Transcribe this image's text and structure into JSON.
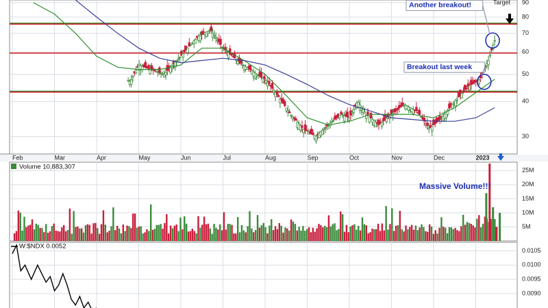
{
  "colors": {
    "grid": "#d9dde4",
    "up": "#3a8a3a",
    "down": "#c81e3c",
    "ma_short": "#2f8f2f",
    "ma_long": "#3b3f9a",
    "support": "#1f8a1f",
    "resistance": "#d21f2a",
    "annotation": "#1a2fb0",
    "indicator": "#000000"
  },
  "chart_data": [
    {
      "type": "candlestick",
      "title": "",
      "y_scale": "log",
      "ylim": [
        26,
        92
      ],
      "price_ticks": [
        30,
        40,
        50,
        60,
        70,
        80,
        90
      ],
      "x_month_labels": [
        "Feb",
        "Mar",
        "Apr",
        "May",
        "Jun",
        "Jul",
        "Aug",
        "Sep",
        "Oct",
        "Nov",
        "Dec",
        "2023"
      ],
      "target_label": "Target",
      "horizontal_lines": [
        {
          "value": 76,
          "color": "support"
        },
        {
          "value": 59.5,
          "color": "resistance"
        },
        {
          "value": 43.5,
          "color": "support"
        },
        {
          "value": 75.5,
          "color": "resistance"
        },
        {
          "value": 43.2,
          "color": "resistance"
        }
      ],
      "close_path": [
        {
          "x": 0.0,
          "y": 90
        },
        {
          "x": 0.5,
          "y": 84
        },
        {
          "x": 1.0,
          "y": 76
        },
        {
          "x": 1.2,
          "y": 62
        },
        {
          "x": 1.5,
          "y": 52
        },
        {
          "x": 1.8,
          "y": 50
        },
        {
          "x": 2.2,
          "y": 55
        },
        {
          "x": 2.5,
          "y": 50
        },
        {
          "x": 2.8,
          "y": 47
        },
        {
          "x": 3.0,
          "y": 54
        },
        {
          "x": 3.3,
          "y": 52
        },
        {
          "x": 3.6,
          "y": 50
        },
        {
          "x": 4.0,
          "y": 58
        },
        {
          "x": 4.4,
          "y": 68
        },
        {
          "x": 4.7,
          "y": 72
        },
        {
          "x": 5.0,
          "y": 62
        },
        {
          "x": 5.4,
          "y": 55
        },
        {
          "x": 5.8,
          "y": 50
        },
        {
          "x": 6.0,
          "y": 48
        },
        {
          "x": 6.3,
          "y": 42
        },
        {
          "x": 6.6,
          "y": 36
        },
        {
          "x": 6.9,
          "y": 32
        },
        {
          "x": 7.2,
          "y": 30
        },
        {
          "x": 7.5,
          "y": 33
        },
        {
          "x": 7.8,
          "y": 36
        },
        {
          "x": 8.0,
          "y": 35
        },
        {
          "x": 8.2,
          "y": 40
        },
        {
          "x": 8.4,
          "y": 36
        },
        {
          "x": 8.7,
          "y": 33
        },
        {
          "x": 9.0,
          "y": 36
        },
        {
          "x": 9.3,
          "y": 39
        },
        {
          "x": 9.6,
          "y": 37
        },
        {
          "x": 9.9,
          "y": 32
        },
        {
          "x": 10.2,
          "y": 35
        },
        {
          "x": 10.5,
          "y": 40
        },
        {
          "x": 10.8,
          "y": 45
        },
        {
          "x": 11.1,
          "y": 48
        },
        {
          "x": 11.3,
          "y": 56
        },
        {
          "x": 11.45,
          "y": 66
        }
      ],
      "ma_short_path": [
        {
          "x": 0.5,
          "y": 90
        },
        {
          "x": 1.0,
          "y": 82
        },
        {
          "x": 1.5,
          "y": 70
        },
        {
          "x": 2.0,
          "y": 58
        },
        {
          "x": 2.5,
          "y": 53
        },
        {
          "x": 3.0,
          "y": 52
        },
        {
          "x": 3.5,
          "y": 52
        },
        {
          "x": 4.0,
          "y": 54
        },
        {
          "x": 4.5,
          "y": 62
        },
        {
          "x": 5.0,
          "y": 62
        },
        {
          "x": 5.5,
          "y": 56
        },
        {
          "x": 6.0,
          "y": 50
        },
        {
          "x": 6.5,
          "y": 42
        },
        {
          "x": 7.0,
          "y": 35
        },
        {
          "x": 7.5,
          "y": 33
        },
        {
          "x": 8.0,
          "y": 34
        },
        {
          "x": 8.5,
          "y": 36
        },
        {
          "x": 9.0,
          "y": 36
        },
        {
          "x": 9.5,
          "y": 36
        },
        {
          "x": 10.0,
          "y": 35
        },
        {
          "x": 10.5,
          "y": 38
        },
        {
          "x": 11.0,
          "y": 43
        },
        {
          "x": 11.45,
          "y": 48
        }
      ],
      "ma_long_path": [
        {
          "x": 1.5,
          "y": 92
        },
        {
          "x": 2.0,
          "y": 80
        },
        {
          "x": 2.5,
          "y": 70
        },
        {
          "x": 3.0,
          "y": 62
        },
        {
          "x": 3.5,
          "y": 57
        },
        {
          "x": 4.0,
          "y": 55
        },
        {
          "x": 4.5,
          "y": 56
        },
        {
          "x": 5.0,
          "y": 57
        },
        {
          "x": 5.5,
          "y": 56
        },
        {
          "x": 6.0,
          "y": 54
        },
        {
          "x": 6.5,
          "y": 50
        },
        {
          "x": 7.0,
          "y": 46
        },
        {
          "x": 7.5,
          "y": 42
        },
        {
          "x": 8.0,
          "y": 39
        },
        {
          "x": 8.5,
          "y": 37
        },
        {
          "x": 9.0,
          "y": 35
        },
        {
          "x": 9.5,
          "y": 34.5
        },
        {
          "x": 10.0,
          "y": 34
        },
        {
          "x": 10.5,
          "y": 34
        },
        {
          "x": 11.0,
          "y": 35
        },
        {
          "x": 11.45,
          "y": 38
        }
      ],
      "annotations": [
        {
          "text": "Another breakout!",
          "x": 9.35,
          "y": 88
        },
        {
          "text": "Breakout last week",
          "x": 9.3,
          "y": 53
        }
      ],
      "circles": [
        {
          "x": 11.4,
          "y": 66
        },
        {
          "x": 11.2,
          "y": 47
        }
      ]
    },
    {
      "type": "bar",
      "label": "Volume 10,883,307",
      "ylim": [
        0,
        28
      ],
      "ticks": [
        "5M",
        "10M",
        "15M",
        "20M",
        "25M"
      ],
      "tick_values": [
        5,
        10,
        15,
        20,
        25
      ],
      "annotation": "Massive Volume!!!",
      "spike_values": [
        17,
        29,
        12,
        5,
        10
      ]
    },
    {
      "type": "line",
      "label": "W:$NDX 0.0052",
      "ylim": [
        0.0084,
        0.0108
      ],
      "ticks": [
        "0.0105",
        "0.0100",
        "0.0095",
        "0.0090"
      ],
      "tick_values": [
        0.0105,
        0.01,
        0.0095,
        0.009
      ],
      "values": [
        {
          "x": 0.0,
          "y": 0.0104
        },
        {
          "x": 0.1,
          "y": 0.0107
        },
        {
          "x": 0.2,
          "y": 0.0098
        },
        {
          "x": 0.3,
          "y": 0.01
        },
        {
          "x": 0.45,
          "y": 0.0095
        },
        {
          "x": 0.6,
          "y": 0.01
        },
        {
          "x": 0.7,
          "y": 0.0097
        },
        {
          "x": 0.8,
          "y": 0.0094
        },
        {
          "x": 0.9,
          "y": 0.0096
        },
        {
          "x": 1.0,
          "y": 0.0091
        },
        {
          "x": 1.1,
          "y": 0.0093
        },
        {
          "x": 1.2,
          "y": 0.0097
        },
        {
          "x": 1.3,
          "y": 0.0093
        },
        {
          "x": 1.4,
          "y": 0.0088
        },
        {
          "x": 1.5,
          "y": 0.0086
        },
        {
          "x": 1.6,
          "y": 0.0089
        },
        {
          "x": 1.7,
          "y": 0.0085
        },
        {
          "x": 1.8,
          "y": 0.0087
        },
        {
          "x": 1.9,
          "y": 0.0084
        },
        {
          "x": 2.0,
          "y": 0.0085
        }
      ]
    }
  ]
}
